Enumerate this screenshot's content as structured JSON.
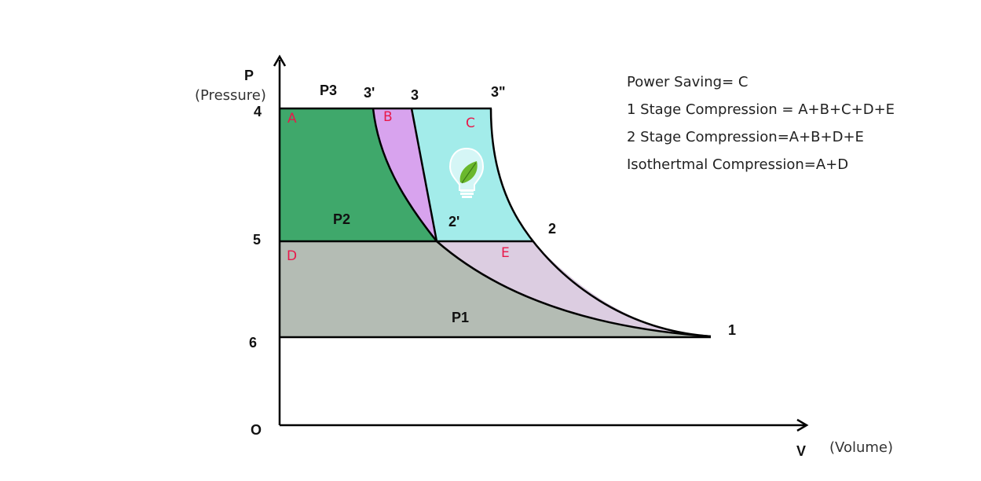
{
  "colors": {
    "region_a": "#3fa86b",
    "region_b": "#d8a3ee",
    "region_c": "#a3ecea",
    "region_d": "#b4bcb4",
    "region_e": "#dccde1",
    "region_letter": "#e8184a",
    "line": "#000000"
  },
  "axes": {
    "y_letter": "P",
    "y_label": "(Pressure)",
    "x_letter": "V",
    "x_label": "(Volume)",
    "origin": "O"
  },
  "levels": {
    "level_4": "4",
    "level_5": "5",
    "level_6": "6"
  },
  "pressures": {
    "p3": "P3",
    "p2": "P2",
    "p1": "P1"
  },
  "points": {
    "pt_3_prime": "3'",
    "pt_3": "3",
    "pt_3_double_prime": "3\"",
    "pt_2_prime": "2'",
    "pt_2": "2",
    "pt_1": "1"
  },
  "regions": {
    "a": "A",
    "b": "B",
    "c": "C",
    "d": "D",
    "e": "E"
  },
  "legend": {
    "power_saving": "Power Saving= C",
    "one_stage": "1 Stage Compression = A+B+C+D+E",
    "two_stage": "2 Stage Compression=A+B+D+E",
    "isothermal": "Isothertmal Compression=A+D"
  },
  "icons": {
    "saving_icon": "lightbulb-leaf-icon"
  }
}
